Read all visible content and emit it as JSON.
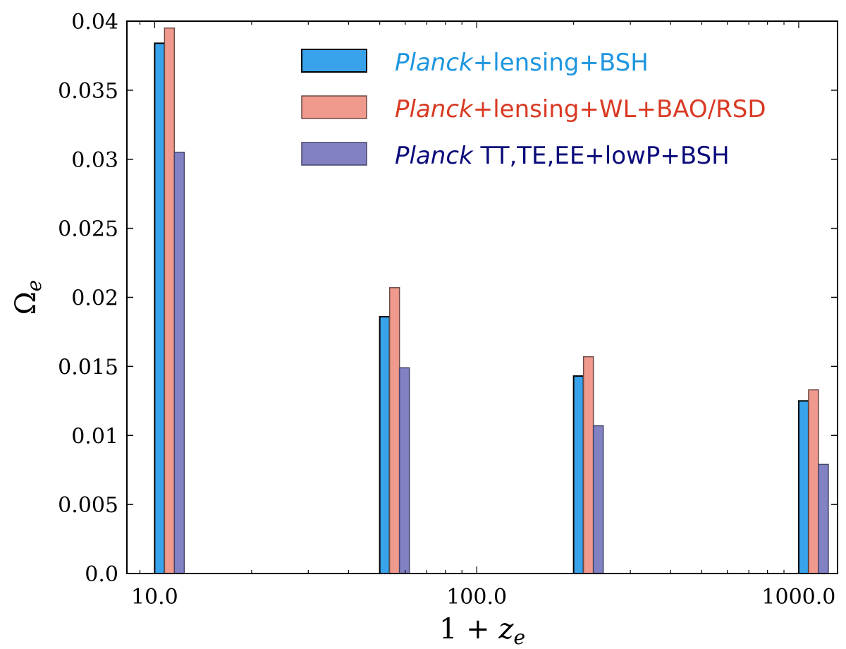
{
  "chart_data": {
    "type": "bar",
    "xscale": "log",
    "xlabel": {
      "main": "1 + ",
      "var": "z",
      "sub": "e"
    },
    "ylabel": {
      "var": "Ω",
      "sub": "e"
    },
    "xlim": [
      8.2,
      1320
    ],
    "ylim": [
      0,
      0.04
    ],
    "xticks": [
      10,
      100,
      1000
    ],
    "xtick_labels": [
      "10.0",
      "100.0",
      "1000.0"
    ],
    "yticks": [
      0.0,
      0.005,
      0.01,
      0.015,
      0.02,
      0.025,
      0.03,
      0.035,
      0.04
    ],
    "ytick_labels": [
      "0.0",
      "0.005",
      "0.01",
      "0.015",
      "0.02",
      "0.025",
      "0.03",
      "0.035",
      "0.04"
    ],
    "categories": [
      "10",
      "50",
      "200",
      "1000"
    ],
    "x": [
      10,
      50,
      200,
      1000
    ],
    "legend_position": "top-right",
    "series": [
      {
        "name": "Planck+lensing+BSH",
        "legend_italic": "Planck",
        "legend_rest": "+lensing+BSH",
        "color": "#38a3ea",
        "text_color": "#1e96df",
        "edge": "#000000",
        "values": [
          0.0384,
          0.0186,
          0.0143,
          0.0125
        ]
      },
      {
        "name": "Planck+lensing+WL+BAO/RSD",
        "legend_italic": "Planck",
        "legend_rest": "+lensing+WL+BAO/RSD",
        "color": "#f0998d",
        "text_color": "#d93a24",
        "edge": "#6e4a45",
        "values": [
          0.0395,
          0.0207,
          0.0157,
          0.0133
        ]
      },
      {
        "name": "Planck TT,TE,EE+lowP+BSH",
        "legend_italic": "Planck",
        "legend_rest": " TT,TE,EE+lowP+BSH",
        "color": "#8181c4",
        "text_color": "#0a0a7a",
        "edge": "#45456a",
        "values": [
          0.0305,
          0.0149,
          0.0107,
          0.0079
        ]
      }
    ]
  }
}
